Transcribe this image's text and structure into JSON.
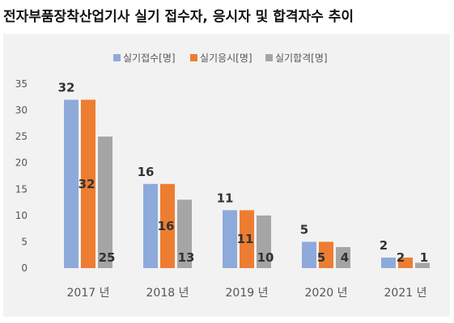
{
  "title": "전자부품장착산업기사 실기 접수자, 응시자 및 합격자수 추이",
  "chart_data": {
    "type": "bar",
    "categories": [
      "2017 년",
      "2018 년",
      "2019 년",
      "2020 년",
      "2021 년"
    ],
    "series": [
      {
        "name": "실기접수[명]",
        "values": [
          32,
          16,
          11,
          5,
          2
        ],
        "color": "#8eaadb"
      },
      {
        "name": "실기응시[명]",
        "values": [
          32,
          16,
          11,
          5,
          2
        ],
        "color": "#ed7d31"
      },
      {
        "name": "실기합격[명]",
        "values": [
          25,
          13,
          10,
          4,
          1
        ],
        "color": "#a5a5a5"
      }
    ],
    "ylim": [
      0,
      35
    ],
    "yticks": [
      0,
      5,
      10,
      15,
      20,
      25,
      30,
      35
    ],
    "legend": "top",
    "grid": false
  }
}
